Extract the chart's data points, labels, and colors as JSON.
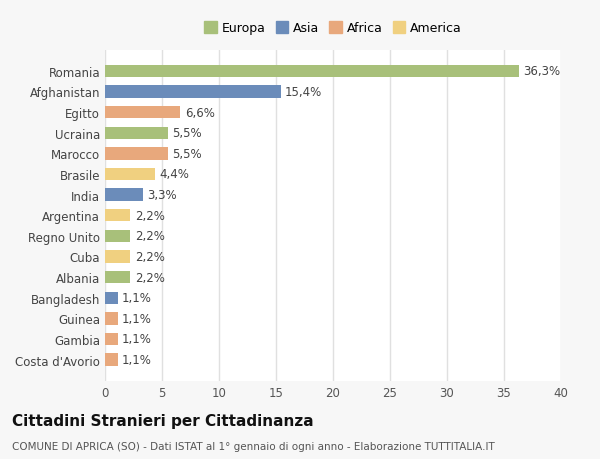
{
  "countries": [
    "Romania",
    "Afghanistan",
    "Egitto",
    "Ucraina",
    "Marocco",
    "Brasile",
    "India",
    "Argentina",
    "Regno Unito",
    "Cuba",
    "Albania",
    "Bangladesh",
    "Guinea",
    "Gambia",
    "Costa d'Avorio"
  ],
  "values": [
    36.3,
    15.4,
    6.6,
    5.5,
    5.5,
    4.4,
    3.3,
    2.2,
    2.2,
    2.2,
    2.2,
    1.1,
    1.1,
    1.1,
    1.1
  ],
  "labels": [
    "36,3%",
    "15,4%",
    "6,6%",
    "5,5%",
    "5,5%",
    "4,4%",
    "3,3%",
    "2,2%",
    "2,2%",
    "2,2%",
    "2,2%",
    "1,1%",
    "1,1%",
    "1,1%",
    "1,1%"
  ],
  "colors": [
    "#a8c07a",
    "#6b8cba",
    "#e8a87c",
    "#a8c07a",
    "#e8a87c",
    "#f0d080",
    "#6b8cba",
    "#f0d080",
    "#a8c07a",
    "#f0d080",
    "#a8c07a",
    "#6b8cba",
    "#e8a87c",
    "#e8a87c",
    "#e8a87c"
  ],
  "legend_labels": [
    "Europa",
    "Asia",
    "Africa",
    "America"
  ],
  "legend_colors": [
    "#a8c07a",
    "#6b8cba",
    "#e8a87c",
    "#f0d080"
  ],
  "title": "Cittadini Stranieri per Cittadinanza",
  "subtitle": "COMUNE DI APRICA (SO) - Dati ISTAT al 1° gennaio di ogni anno - Elaborazione TUTTITALIA.IT",
  "xlim": [
    0,
    40
  ],
  "xticks": [
    0,
    5,
    10,
    15,
    20,
    25,
    30,
    35,
    40
  ],
  "background_color": "#f7f7f7",
  "plot_bg_color": "#ffffff",
  "grid_color": "#e0e0e0",
  "bar_height": 0.6,
  "label_fontsize": 8.5,
  "tick_fontsize": 8.5,
  "title_fontsize": 11,
  "subtitle_fontsize": 7.5
}
